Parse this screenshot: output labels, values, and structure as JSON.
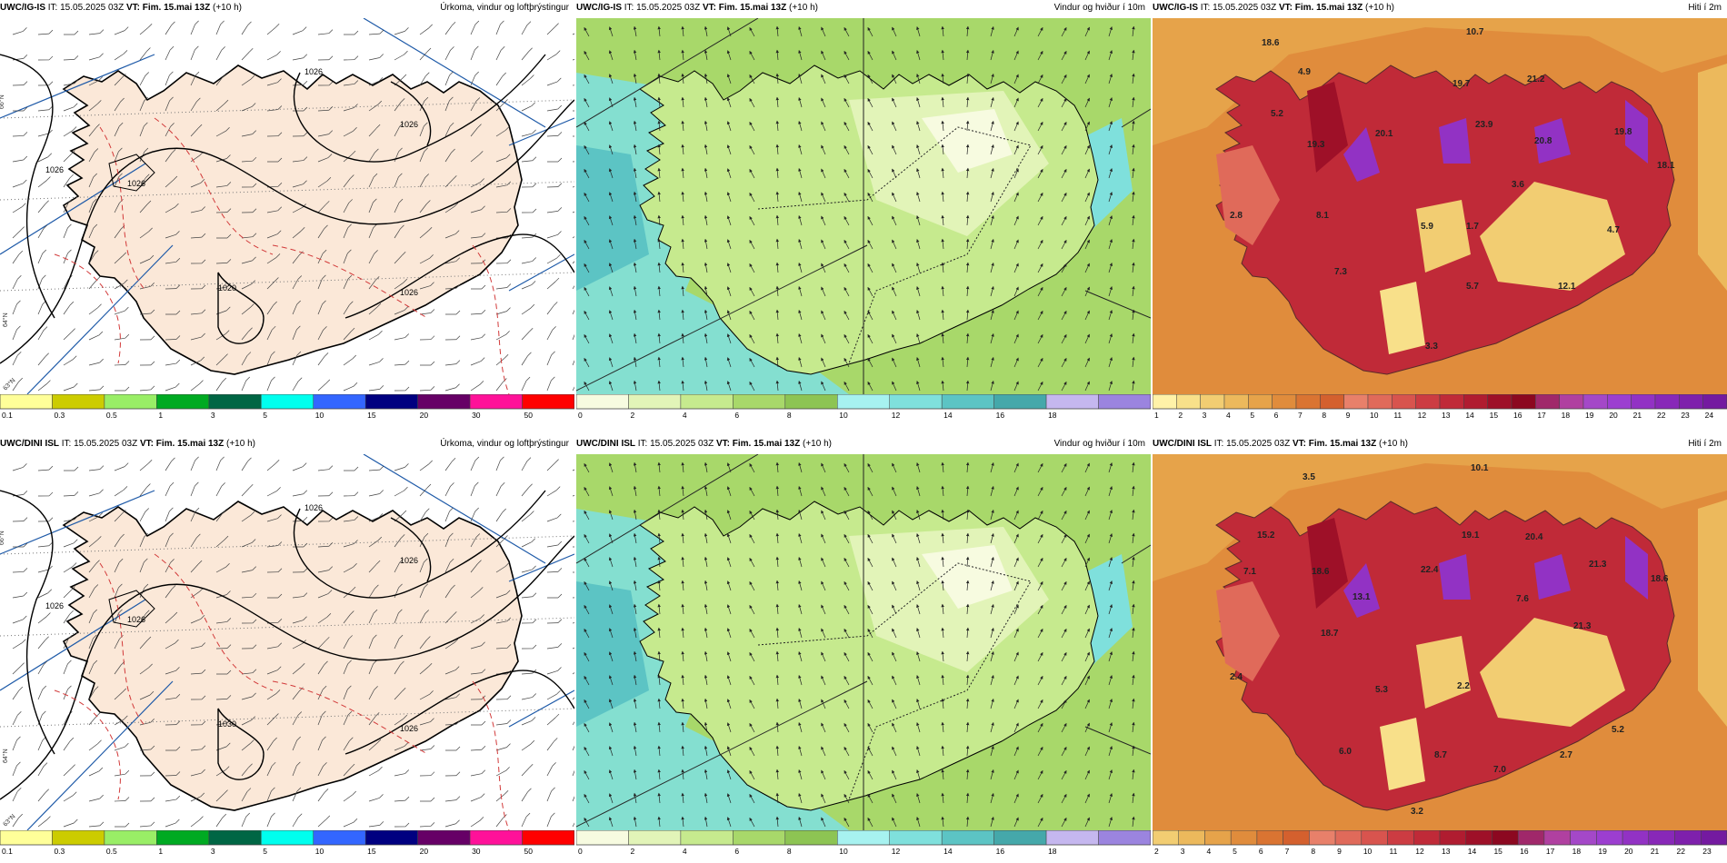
{
  "panels": [
    {
      "id": "r1c1",
      "model": "UWC/IG-IS",
      "it_label": "IT:",
      "it": "15.05.2025 03Z",
      "vt_label": "VT:",
      "vt": "Fim. 15.mai 13Z",
      "lead": "(+10 h)",
      "param": "Úrkoma, vindur og loftþrýstingur",
      "type": "precip",
      "isobars": [
        "1026",
        "1026",
        "1026",
        "1026",
        "1020",
        "1026"
      ],
      "point_labels": []
    },
    {
      "id": "r1c2",
      "model": "UWC/IG-IS",
      "it_label": "IT:",
      "it": "15.05.2025 03Z",
      "vt_label": "VT:",
      "vt": "Fim. 15.mai 13Z",
      "lead": "(+10 h)",
      "param": "Vindur og hviður í 10m",
      "type": "wind",
      "point_labels": []
    },
    {
      "id": "r1c3",
      "model": "UWC/IG-IS",
      "it_label": "IT:",
      "it": "15.05.2025 03Z",
      "vt_label": "VT:",
      "vt": "Fim. 15.mai 13Z",
      "lead": "(+10 h)",
      "param": "Hiti í 2m",
      "type": "temp",
      "point_labels": [
        "18.6",
        "10.7",
        "4.9",
        "5.2",
        "19.7",
        "21.2",
        "19.3",
        "20.1",
        "23.9",
        "20.8",
        "19.8",
        "18.1",
        "3.6",
        "2.8",
        "8.1",
        "5.9",
        "1.7",
        "4.7",
        "7.3",
        "5.7",
        "12.1",
        "3.3"
      ]
    },
    {
      "id": "r2c1",
      "model": "UWC/DINI ISL",
      "it_label": "IT:",
      "it": "15.05.2025 03Z",
      "vt_label": "VT:",
      "vt": "Fim. 15.mai 13Z",
      "lead": "(+10 h)",
      "param": "Úrkoma, vindur og loftþrýstingur",
      "type": "precip",
      "isobars": [
        "1026",
        "1026",
        "1026",
        "1026",
        "1030",
        "1026"
      ],
      "point_labels": []
    },
    {
      "id": "r2c2",
      "model": "UWC/DINI ISL",
      "it_label": "IT:",
      "it": "15.05.2025 03Z",
      "vt_label": "VT:",
      "vt": "Fim. 15.mai 13Z",
      "lead": "(+10 h)",
      "param": "Vindur og hviður í 10m",
      "type": "wind",
      "point_labels": []
    },
    {
      "id": "r2c3",
      "model": "UWC/DINI ISL",
      "it_label": "IT:",
      "it": "15.05.2025 03Z",
      "vt_label": "VT:",
      "vt": "Fim. 15.mai 13Z",
      "lead": "(+10 h)",
      "param": "Hiti í 2m",
      "type": "temp",
      "point_labels": [
        "3.5",
        "10.1",
        "15.2",
        "19.1",
        "20.4",
        "7.1",
        "18.6",
        "22.4",
        "21.3",
        "18.6",
        "13.1",
        "7.6",
        "18.7",
        "21.3",
        "2.4",
        "5.3",
        "2.2",
        "5.2",
        "6.0",
        "8.7",
        "2.7",
        "7.0",
        "3.2"
      ]
    }
  ],
  "gridline_labels": {
    "lat_66": "66°N",
    "lat_64": "64°N",
    "lat_63": "63°N"
  },
  "colorbars": {
    "precip": {
      "colors": [
        "#ffff99",
        "#cccc00",
        "#99ee66",
        "#00aa22",
        "#006644",
        "#00ffee",
        "#3366ff",
        "#000080",
        "#660066",
        "#ff1199",
        "#ff0000"
      ],
      "labels": [
        "0.1",
        "0.3",
        "0.5",
        "1",
        "3",
        "5",
        "10",
        "15",
        "20",
        "30",
        "50"
      ]
    },
    "wind": {
      "colors": [
        "#f7fbe0",
        "#e2f4b8",
        "#c6ea8e",
        "#a8d86a",
        "#8dc453",
        "#a7f2f0",
        "#7fe0dc",
        "#5cc4c4",
        "#45a8aa",
        "#c5b7ef",
        "#9b84df"
      ],
      "labels": [
        "0",
        "2",
        "4",
        "6",
        "8",
        "10",
        "12",
        "14",
        "16",
        "18"
      ]
    },
    "temp_row1": {
      "colors": [
        "#fff2a8",
        "#f8e08a",
        "#f2cd72",
        "#ecb95c",
        "#e6a34a",
        "#e08c3c",
        "#da7432",
        "#d4602e",
        "#e8806a",
        "#e06a5a",
        "#d8544e",
        "#cc3c42",
        "#c02a38",
        "#b01c30",
        "#9e1028",
        "#8c0820",
        "#a0286a",
        "#b040a0",
        "#a448c8",
        "#9c3ed0",
        "#9232c4",
        "#8828b8",
        "#7e20ac",
        "#741aa0"
      ],
      "labels": [
        "1",
        "2",
        "3",
        "4",
        "5",
        "6",
        "7",
        "8",
        "9",
        "10",
        "11",
        "12",
        "13",
        "14",
        "15",
        "16",
        "17",
        "18",
        "19",
        "20",
        "21",
        "22",
        "23",
        "24"
      ]
    },
    "temp_row2": {
      "colors": [
        "#f2cd72",
        "#ecb95c",
        "#e6a34a",
        "#e08c3c",
        "#da7432",
        "#d4602e",
        "#e8806a",
        "#e06a5a",
        "#d8544e",
        "#cc3c42",
        "#c02a38",
        "#b01c30",
        "#9e1028",
        "#8c0820",
        "#a0286a",
        "#b040a0",
        "#a448c8",
        "#9c3ed0",
        "#9232c4",
        "#8828b8",
        "#7e20ac",
        "#741aa0"
      ],
      "labels": [
        "2",
        "3",
        "4",
        "5",
        "6",
        "7",
        "8",
        "9",
        "10",
        "11",
        "12",
        "13",
        "14",
        "15",
        "16",
        "17",
        "18",
        "19",
        "20",
        "21",
        "22",
        "23"
      ]
    }
  },
  "colors": {
    "land_precip": "#fbe8d8",
    "sea_precip": "#ffffff",
    "isobar": "#000000",
    "dashed_temp": "#d23a3a",
    "meridian": "#1e5aa8",
    "wind_sea": "#a8d86a",
    "wind_coast": "#7fe0dc",
    "wind_land": "#e2f4b8",
    "temp_sea": "#e08c3c",
    "temp_land_warm": "#c02a38",
    "temp_land_hot": "#9232c4",
    "temp_land_cool": "#f2cd72"
  }
}
